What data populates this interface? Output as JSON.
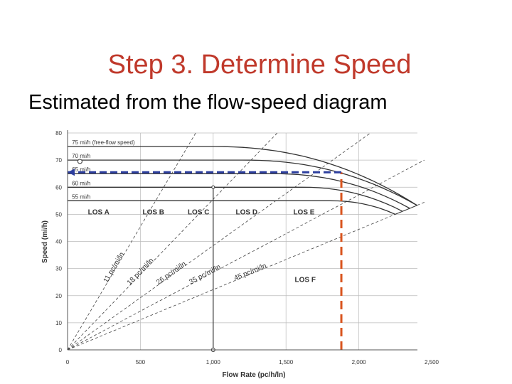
{
  "slide": {
    "title": "Step 3.  Determine Speed",
    "subtitle": "Estimated from the flow-speed diagram"
  },
  "chart_data": {
    "type": "line",
    "xlabel": "Flow Rate (pc/h/ln)",
    "ylabel": "Speed (mi/h)",
    "xlim": [
      0,
      2500
    ],
    "ylim": [
      0,
      80
    ],
    "x_ticks": [
      "0",
      "500",
      "1,000",
      "1,500",
      "2,000",
      "2,500"
    ],
    "y_ticks": [
      "0",
      "10",
      "20",
      "30",
      "40",
      "50",
      "60",
      "70",
      "80"
    ],
    "series": [
      {
        "name": "75 mi/h (free-flow speed)",
        "ffs": 75,
        "breakpoint": 1000,
        "capacity": 2400,
        "capacity_speed": 53.3
      },
      {
        "name": "70 mi/h",
        "ffs": 70,
        "breakpoint": 1200,
        "capacity": 2400,
        "capacity_speed": 53.3
      },
      {
        "name": "65 mi/h",
        "ffs": 65,
        "breakpoint": 1400,
        "capacity": 2350,
        "capacity_speed": 52.2
      },
      {
        "name": "60 mi/h",
        "ffs": 60,
        "breakpoint": 1600,
        "capacity": 2300,
        "capacity_speed": 51.1
      },
      {
        "name": "55 mi/h",
        "ffs": 55,
        "breakpoint": 1800,
        "capacity": 2250,
        "capacity_speed": 50.0
      }
    ],
    "density_lines": [
      {
        "label": "11 pc/mi/ln",
        "density": 11
      },
      {
        "label": "18 pc/mi/ln",
        "density": 18
      },
      {
        "label": "26 pc/mi/ln",
        "density": 26
      },
      {
        "label": "35 pc/mi/ln",
        "density": 35
      },
      {
        "label": "45 pc/mi/ln",
        "density": 45
      }
    ],
    "los_labels": [
      "LOS A",
      "LOS B",
      "LOS C",
      "LOS D",
      "LOS E",
      "LOS F"
    ],
    "annotations": {
      "example_flow": 1000,
      "example_speed": 60,
      "determined_flow": 1880,
      "determined_speed": 65.5,
      "determined_color": "#d9541e",
      "speed_line_color": "#2c3e9e"
    },
    "grid": true
  }
}
